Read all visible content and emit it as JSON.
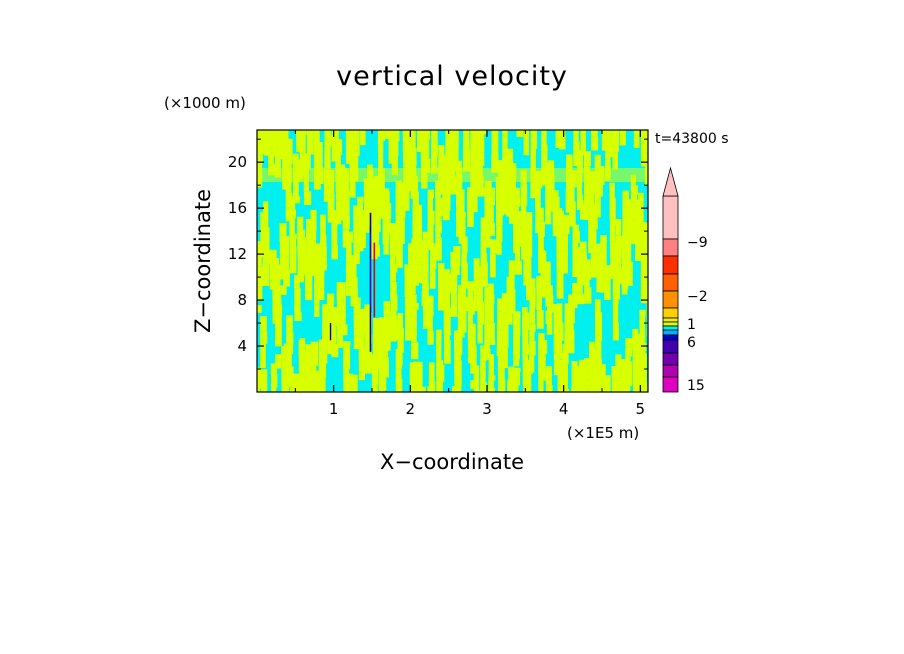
{
  "chart_data": {
    "type": "heatmap",
    "title": "vertical velocity",
    "xlabel": "X−coordinate",
    "ylabel": "Z−coordinate",
    "x_unit": "(×1E5 m)",
    "y_unit": "(×1000 m)",
    "time_label": "t=43800 s",
    "xlim": [
      0,
      5.1
    ],
    "ylim": [
      0,
      22.8
    ],
    "x_ticks": [
      1,
      2,
      3,
      4,
      5
    ],
    "y_ticks": [
      4,
      8,
      12,
      16,
      20
    ],
    "x_tick_labels": [
      "1",
      "2",
      "3",
      "4",
      "5"
    ],
    "y_tick_labels": [
      "4",
      "8",
      "12",
      "16",
      "20"
    ],
    "colorbar": {
      "colors": [
        "#e000c0",
        "#b000b0",
        "#7000b0",
        "#4000b0",
        "#0000d0",
        "#00b0ff",
        "#00f0f0",
        "#d8ff00",
        "#f0f000",
        "#ffd000",
        "#ff9000",
        "#ff6000",
        "#ff3000",
        "#ff8080",
        "#ffc0c0"
      ],
      "labels": [
        "−9",
        "−2",
        "1",
        "6",
        "15"
      ],
      "extend_max": true
    },
    "field_colors": {
      "negative": "#00f0f0",
      "positive": "#d8ff00",
      "strong_up": "#e00000",
      "strong_down": "#0000d0"
    }
  }
}
